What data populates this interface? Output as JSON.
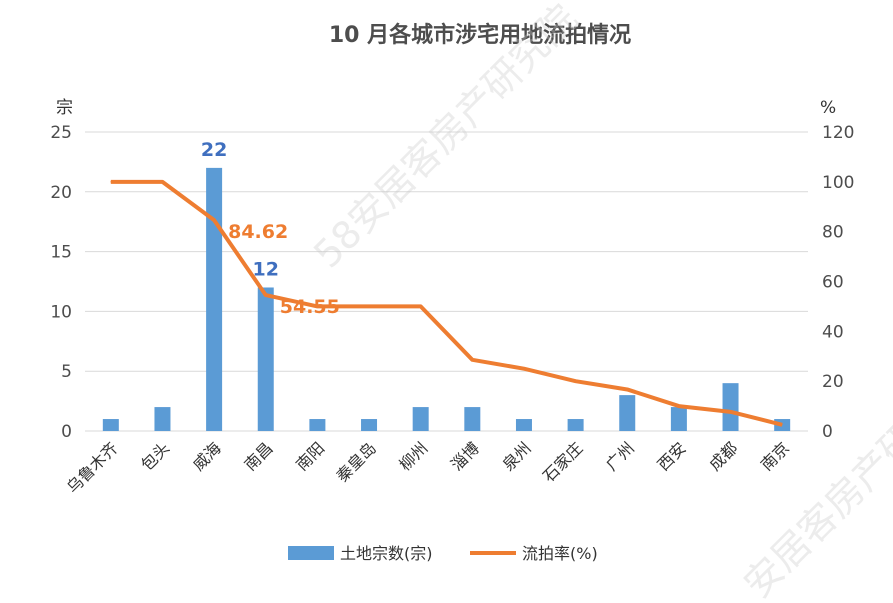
{
  "chart_data": {
    "type": "bar",
    "title": "10 月各城市涉宅用地流拍情况",
    "y_left_unit": "宗",
    "y_right_unit": "%",
    "y_left_range": [
      0,
      25
    ],
    "y_right_range": [
      0,
      120
    ],
    "y_left_ticks": [
      0,
      5,
      10,
      15,
      20,
      25
    ],
    "y_right_ticks": [
      0,
      20,
      40,
      60,
      80,
      100,
      120
    ],
    "grid": true,
    "legend_position": "bottom",
    "categories": [
      "乌鲁木齐",
      "包头",
      "威海",
      "南昌",
      "南阳",
      "秦皇岛",
      "柳州",
      "淄博",
      "泉州",
      "石家庄",
      "广州",
      "西安",
      "成都",
      "南京"
    ],
    "series": [
      {
        "name": "土地宗数(宗)",
        "type": "bar",
        "axis": "left",
        "color": "#5b9bd5",
        "values": [
          1,
          2,
          22,
          12,
          1,
          1,
          2,
          2,
          1,
          1,
          3,
          2,
          4,
          1
        ]
      },
      {
        "name": "流拍率(%)",
        "type": "line",
        "axis": "right",
        "color": "#ee7d31",
        "values": [
          100,
          100,
          84.62,
          54.55,
          50,
          50,
          50,
          28.57,
          25,
          20,
          16.67,
          10,
          7.69,
          2.5
        ]
      }
    ],
    "data_labels": [
      {
        "series": 0,
        "index": 2,
        "text": "22"
      },
      {
        "series": 0,
        "index": 3,
        "text": "12"
      },
      {
        "series": 1,
        "index": 2,
        "text": "84.62"
      },
      {
        "series": 1,
        "index": 3,
        "text": "54.55"
      }
    ],
    "watermarks": [
      "58安居客房产研究院",
      "安居客房产研究院"
    ]
  }
}
